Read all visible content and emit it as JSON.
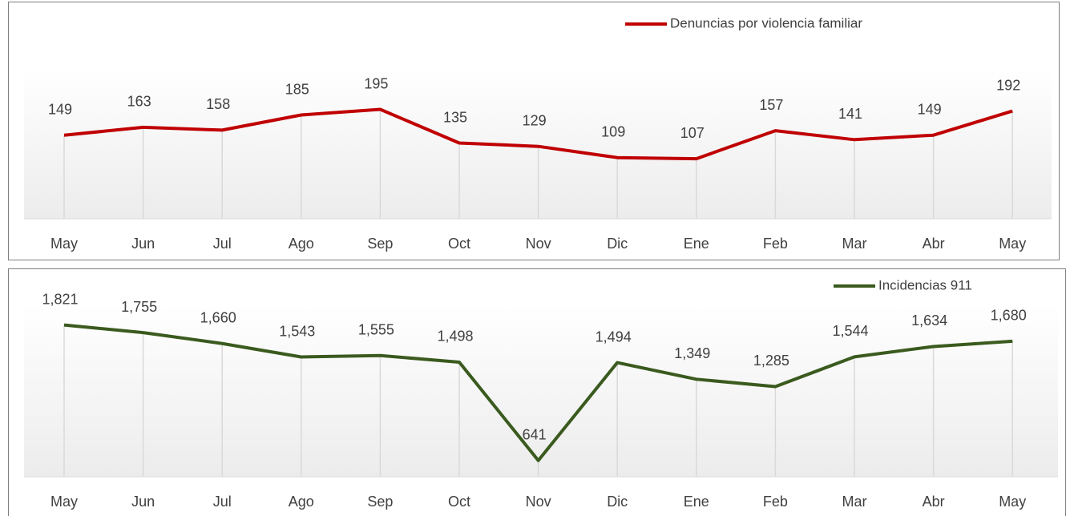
{
  "chart_data": [
    {
      "type": "line",
      "categories": [
        "May",
        "Jun",
        "Jul",
        "Ago",
        "Sep",
        "Oct",
        "Nov",
        "Dic",
        "Ene",
        "Feb",
        "Mar",
        "Abr",
        "May"
      ],
      "series": [
        {
          "name": "Denuncias por violencia familiar",
          "color": "#c00000",
          "values": [
            149,
            163,
            158,
            185,
            195,
            135,
            129,
            109,
            107,
            157,
            141,
            149,
            192
          ]
        }
      ],
      "ylim": [
        0,
        250
      ],
      "legend": "top-right"
    },
    {
      "type": "line",
      "categories": [
        "May",
        "Jun",
        "Jul",
        "Ago",
        "Sep",
        "Oct",
        "Nov",
        "Dic",
        "Ene",
        "Feb",
        "Mar",
        "Abr",
        "May"
      ],
      "series": [
        {
          "name": "Incidencias 911",
          "color": "#3a5a1e",
          "values": [
            1821,
            1755,
            1660,
            1543,
            1555,
            1498,
            641,
            1494,
            1349,
            1285,
            1544,
            1634,
            1680
          ],
          "value_labels": [
            "1,821",
            "1,755",
            "1,660",
            "1,543",
            "1,555",
            "1,498",
            "641",
            "1,494",
            "1,349",
            "1,285",
            "1,544",
            "1,634",
            "1,680"
          ]
        }
      ],
      "ylim": [
        500,
        2000
      ],
      "legend": "top-right"
    }
  ]
}
